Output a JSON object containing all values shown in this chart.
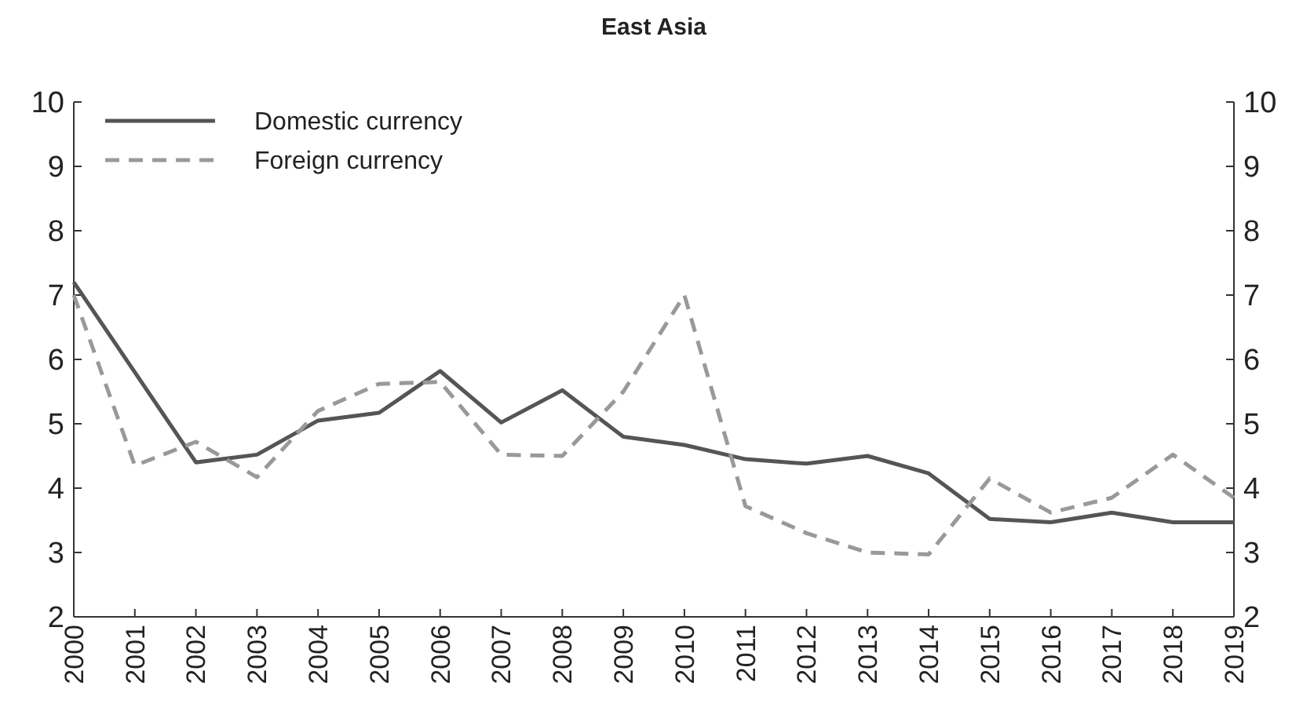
{
  "chart_data": {
    "type": "line",
    "title": "East Asia",
    "x": [
      2000,
      2001,
      2002,
      2003,
      2004,
      2005,
      2006,
      2007,
      2008,
      2009,
      2010,
      2011,
      2012,
      2013,
      2014,
      2015,
      2016,
      2017,
      2018,
      2019
    ],
    "xlim": [
      2000,
      2019
    ],
    "xticks": [
      2000,
      2001,
      2002,
      2003,
      2004,
      2005,
      2006,
      2007,
      2008,
      2009,
      2010,
      2011,
      2012,
      2013,
      2014,
      2015,
      2016,
      2017,
      2018,
      2019
    ],
    "ylim": [
      2,
      10
    ],
    "yticks": [
      2,
      3,
      4,
      5,
      6,
      7,
      8,
      9,
      10
    ],
    "y2lim": [
      2,
      10
    ],
    "y2ticks": [
      2,
      3,
      4,
      5,
      6,
      7,
      8,
      9,
      10
    ],
    "legend": "top left",
    "grid": false,
    "marker": "none",
    "series": [
      {
        "name": "Domestic currency",
        "color": "#555555",
        "line_style": "solid",
        "values": [
          7.2,
          5.8,
          4.4,
          4.52,
          5.05,
          5.17,
          5.82,
          5.02,
          5.52,
          4.8,
          4.67,
          4.45,
          4.38,
          4.5,
          4.23,
          3.52,
          3.47,
          3.62,
          3.47,
          3.47
        ]
      },
      {
        "name": "Foreign currency",
        "color": "#999999",
        "line_style": "dashed",
        "values": [
          7.0,
          4.35,
          4.72,
          4.17,
          5.2,
          5.62,
          5.65,
          4.52,
          4.5,
          5.5,
          7.0,
          3.72,
          3.3,
          3.0,
          2.97,
          4.15,
          3.62,
          3.85,
          4.52,
          3.85
        ]
      }
    ]
  }
}
